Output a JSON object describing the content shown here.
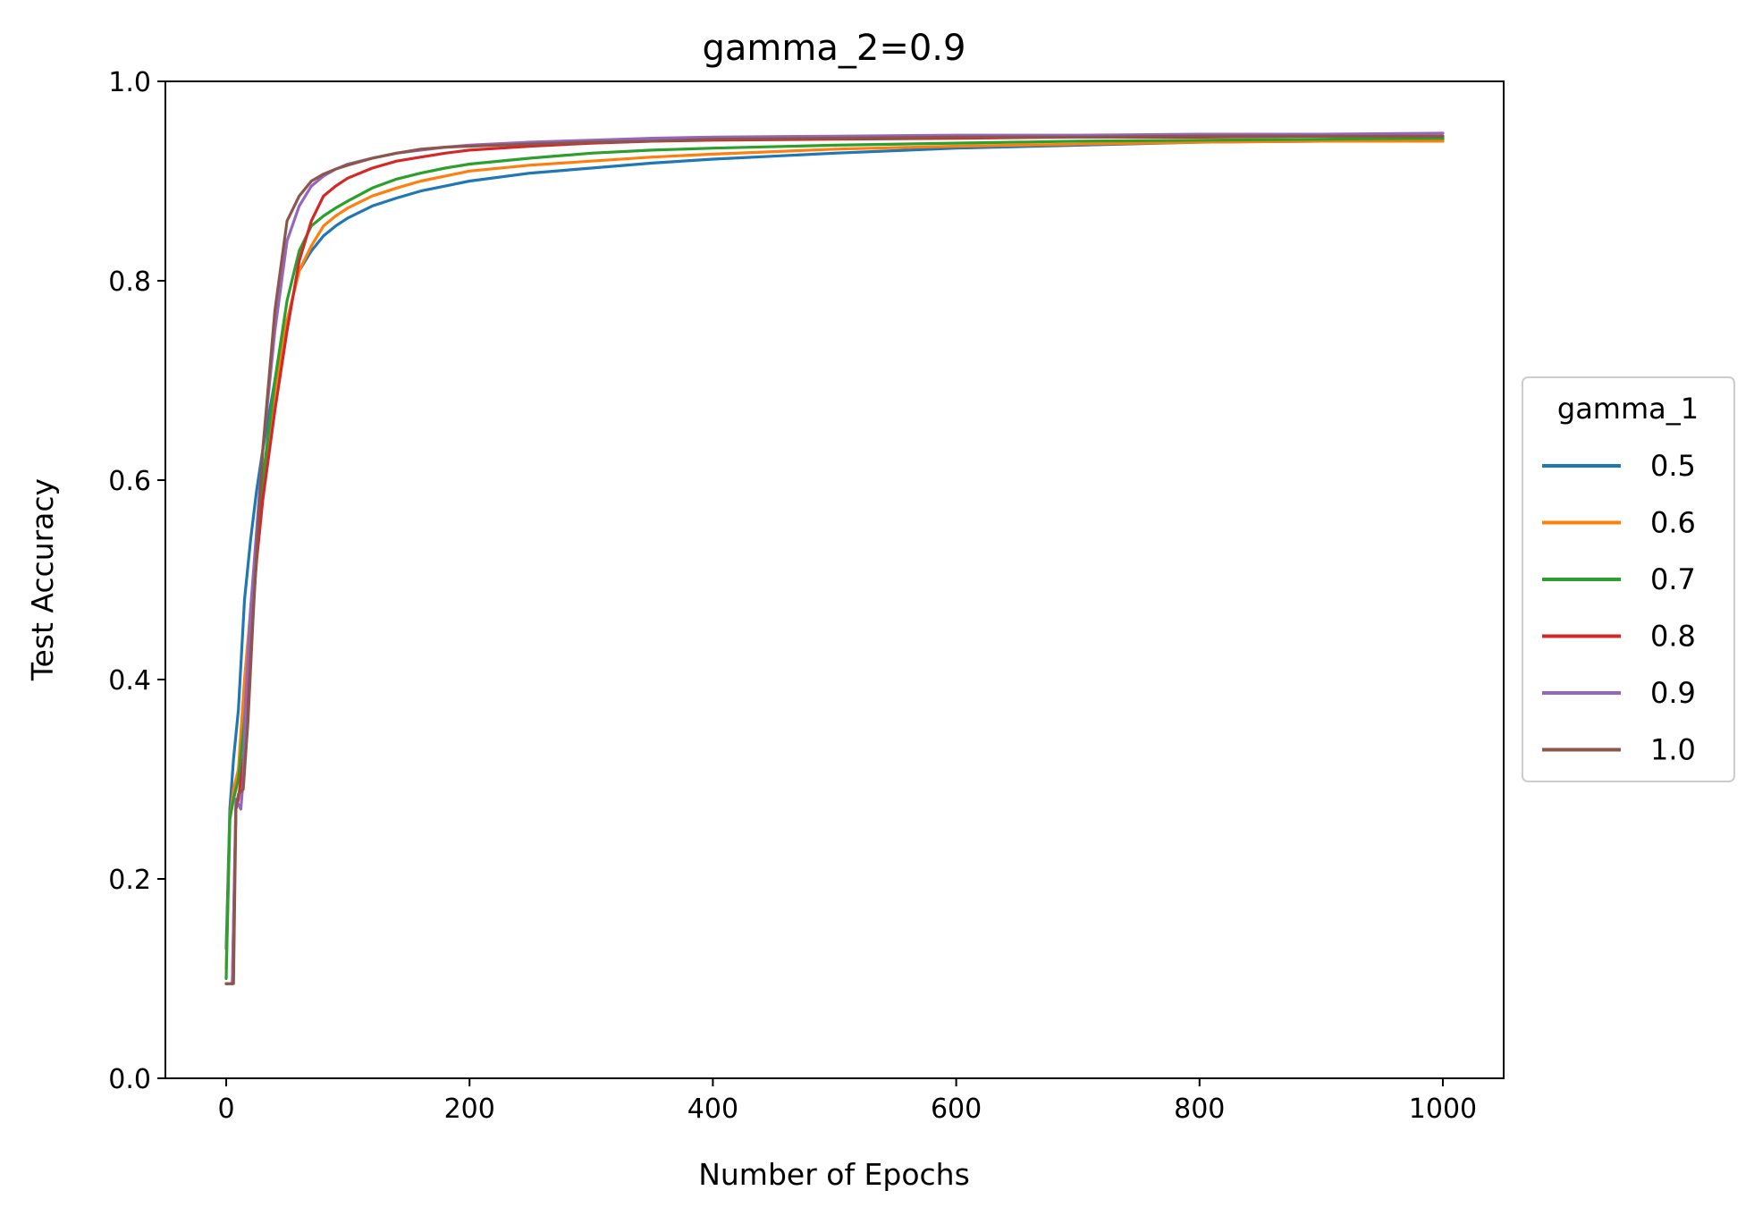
{
  "chart_data": {
    "type": "line",
    "title": "gamma_2=0.9",
    "xlabel": "Number of Epochs",
    "ylabel": "Test Accuracy",
    "xlim": [
      -50,
      1050
    ],
    "ylim": [
      0,
      1
    ],
    "xticks": [
      0,
      200,
      400,
      600,
      800,
      1000
    ],
    "xtick_labels": [
      "0",
      "200",
      "400",
      "600",
      "800",
      "1000"
    ],
    "yticks": [
      0,
      0.2,
      0.4,
      0.6,
      0.8,
      1.0
    ],
    "ytick_labels": [
      "0.0",
      "0.2",
      "0.4",
      "0.6",
      "0.8",
      "1.0"
    ],
    "grid": false,
    "legend": {
      "title": "gamma_1",
      "placement": "outside right"
    },
    "series": [
      {
        "name": "0.5",
        "color": "#1f77b4",
        "x": [
          0,
          3,
          6,
          10,
          15,
          20,
          25,
          30,
          40,
          50,
          60,
          70,
          80,
          90,
          100,
          120,
          140,
          160,
          180,
          200,
          250,
          300,
          350,
          400,
          500,
          600,
          700,
          800,
          900,
          1000
        ],
        "y": [
          0.13,
          0.27,
          0.32,
          0.37,
          0.48,
          0.54,
          0.59,
          0.63,
          0.7,
          0.76,
          0.81,
          0.83,
          0.845,
          0.855,
          0.863,
          0.875,
          0.883,
          0.89,
          0.895,
          0.9,
          0.908,
          0.913,
          0.918,
          0.922,
          0.928,
          0.933,
          0.936,
          0.939,
          0.94,
          0.942
        ]
      },
      {
        "name": "0.6",
        "color": "#ff7f0e",
        "x": [
          0,
          3,
          6,
          10,
          15,
          20,
          25,
          30,
          40,
          50,
          60,
          70,
          80,
          90,
          100,
          120,
          140,
          160,
          180,
          200,
          250,
          300,
          350,
          400,
          500,
          600,
          700,
          800,
          900,
          1000
        ],
        "y": [
          0.11,
          0.26,
          0.29,
          0.31,
          0.4,
          0.47,
          0.54,
          0.6,
          0.69,
          0.76,
          0.81,
          0.835,
          0.855,
          0.865,
          0.873,
          0.885,
          0.893,
          0.9,
          0.905,
          0.91,
          0.916,
          0.92,
          0.924,
          0.927,
          0.932,
          0.935,
          0.937,
          0.939,
          0.94,
          0.94
        ]
      },
      {
        "name": "0.7",
        "color": "#2ca02c",
        "x": [
          0,
          3,
          6,
          10,
          15,
          20,
          25,
          30,
          40,
          50,
          60,
          70,
          80,
          90,
          100,
          120,
          140,
          160,
          180,
          200,
          250,
          300,
          350,
          400,
          500,
          600,
          700,
          800,
          900,
          1000
        ],
        "y": [
          0.1,
          0.26,
          0.28,
          0.3,
          0.36,
          0.45,
          0.53,
          0.6,
          0.7,
          0.78,
          0.83,
          0.855,
          0.865,
          0.873,
          0.88,
          0.893,
          0.902,
          0.908,
          0.913,
          0.917,
          0.923,
          0.928,
          0.931,
          0.933,
          0.936,
          0.938,
          0.94,
          0.941,
          0.942,
          0.943
        ]
      },
      {
        "name": "0.8",
        "color": "#d62728",
        "x": [
          0,
          5,
          8,
          10,
          15,
          20,
          25,
          30,
          40,
          50,
          60,
          70,
          80,
          90,
          100,
          120,
          140,
          160,
          180,
          200,
          250,
          300,
          350,
          400,
          500,
          600,
          700,
          800,
          900,
          1000
        ],
        "y": [
          0.095,
          0.095,
          0.27,
          0.28,
          0.33,
          0.44,
          0.52,
          0.58,
          0.67,
          0.75,
          0.82,
          0.86,
          0.885,
          0.895,
          0.903,
          0.913,
          0.92,
          0.924,
          0.928,
          0.931,
          0.935,
          0.938,
          0.94,
          0.941,
          0.942,
          0.943,
          0.944,
          0.944,
          0.945,
          0.945
        ]
      },
      {
        "name": "0.9",
        "color": "#9467bd",
        "x": [
          0,
          5,
          8,
          12,
          14,
          16,
          20,
          25,
          30,
          40,
          50,
          60,
          70,
          80,
          90,
          100,
          120,
          140,
          160,
          180,
          200,
          250,
          300,
          350,
          400,
          500,
          600,
          700,
          800,
          900,
          1000
        ],
        "y": [
          0.095,
          0.095,
          0.28,
          0.27,
          0.3,
          0.38,
          0.47,
          0.55,
          0.63,
          0.75,
          0.84,
          0.875,
          0.895,
          0.905,
          0.912,
          0.917,
          0.923,
          0.928,
          0.931,
          0.934,
          0.936,
          0.939,
          0.941,
          0.943,
          0.944,
          0.945,
          0.946,
          0.946,
          0.947,
          0.947,
          0.948
        ]
      },
      {
        "name": "1.0",
        "color": "#8c564b",
        "x": [
          0,
          6,
          8,
          10,
          14,
          18,
          22,
          26,
          30,
          40,
          50,
          60,
          70,
          80,
          90,
          100,
          120,
          140,
          160,
          180,
          200,
          250,
          300,
          350,
          400,
          500,
          600,
          700,
          800,
          900,
          1000
        ],
        "y": [
          0.095,
          0.095,
          0.27,
          0.285,
          0.29,
          0.36,
          0.46,
          0.55,
          0.63,
          0.77,
          0.86,
          0.885,
          0.9,
          0.907,
          0.912,
          0.916,
          0.923,
          0.928,
          0.932,
          0.934,
          0.935,
          0.937,
          0.939,
          0.94,
          0.942,
          0.943,
          0.944,
          0.944,
          0.945,
          0.945,
          0.945
        ]
      }
    ]
  }
}
